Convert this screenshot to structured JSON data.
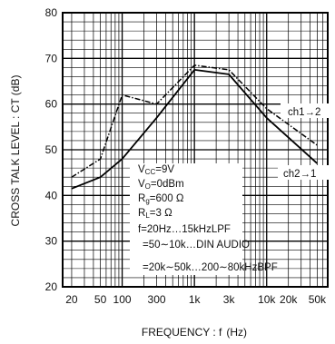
{
  "chart_data": {
    "type": "line",
    "x_scale": "log",
    "xlim": [
      15,
      70000
    ],
    "ylim": [
      20,
      80
    ],
    "grid": true,
    "xlabel_prefix": "FREQUENCY : f",
    "xlabel_unit": "(Hz)",
    "ylabel": "CROSS TALK LEVEL : CT (dB)",
    "x_ticks": [
      {
        "v": 20,
        "label": "20"
      },
      {
        "v": 50,
        "label": "50"
      },
      {
        "v": 100,
        "label": "100"
      },
      {
        "v": 300,
        "label": "300"
      },
      {
        "v": 1000,
        "label": "1k"
      },
      {
        "v": 3000,
        "label": "3k"
      },
      {
        "v": 10000,
        "label": "10k"
      },
      {
        "v": 20000,
        "label": "20k"
      },
      {
        "v": 50000,
        "label": "50k"
      }
    ],
    "y_ticks": [
      20,
      30,
      40,
      50,
      60,
      70,
      80
    ],
    "series": [
      {
        "name": "ch1→2",
        "style": "dashdot",
        "x": [
          20,
          50,
          100,
          300,
          1000,
          3000,
          10000,
          50000
        ],
        "y": [
          44,
          48,
          62,
          60,
          68.5,
          67.5,
          59,
          51
        ]
      },
      {
        "name": "ch2→1",
        "style": "solid",
        "x": [
          20,
          50,
          100,
          300,
          1000,
          3000,
          10000,
          50000
        ],
        "y": [
          41.5,
          44,
          48,
          57,
          67.5,
          66.5,
          57,
          47
        ]
      }
    ],
    "conditions": {
      "vcc_main": "V",
      "vcc_sub": "CC",
      "vcc_val": "=9V",
      "vo_main": "V",
      "vo_sub": "O",
      "vo_val": "=0dBm",
      "rg_main": "R",
      "rg_sub": "g",
      "rg_val": "=600 Ω",
      "rl_main": "R",
      "rl_sub": "L",
      "rl_val": "=3 Ω",
      "f1": "f=20Hz…15kHzLPF",
      "f2": "=50∼10k…DIN AUDIO",
      "f3": "=20k∼50k…200∼80kHzBPF"
    }
  }
}
